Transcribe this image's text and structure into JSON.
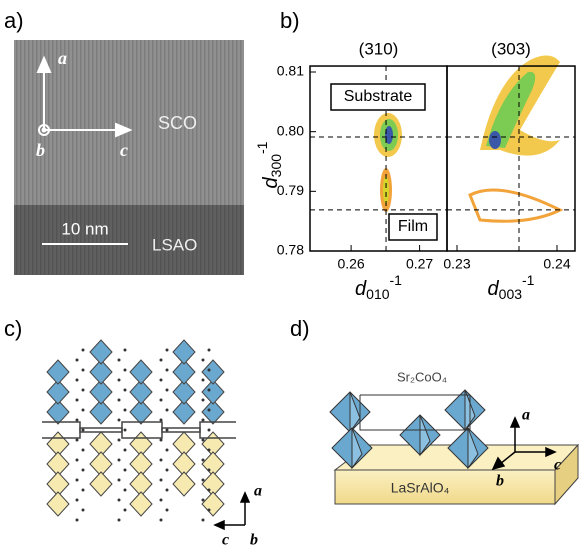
{
  "panel_a": {
    "label": "a)",
    "axis_a": "a",
    "axis_b": "b",
    "axis_c": "c",
    "top_layer": "SCO",
    "scale_bar": "10 nm",
    "bottom_layer": "LSAO"
  },
  "panel_b": {
    "label": "b)",
    "ylim": [
      0.78,
      0.811
    ],
    "yticks": [
      0.78,
      0.79,
      {
        "value": 0.8,
        "label": "0.80"
      },
      0.81
    ],
    "ylabel": {
      "main": "d",
      "sub": "300",
      "sup": "-1"
    },
    "h_dashed": [
      0.7991,
      0.7869
    ],
    "plots": [
      {
        "title": "(310)",
        "xlim": [
          0.254,
          0.274
        ],
        "xticks": [
          0.26,
          0.27
        ],
        "v_dashed": 0.2651,
        "xlabel": {
          "main": "d",
          "sub": "010",
          "sup": "-1"
        },
        "annotations": [
          "Substrate",
          "Film"
        ]
      },
      {
        "title": "(303)",
        "xlim": [
          0.229,
          0.2418
        ],
        "xticks": [
          0.23,
          0.24
        ],
        "v_dashed": 0.2362,
        "xlabel": {
          "main": "d",
          "sub": "003",
          "sup": "-1"
        }
      }
    ]
  },
  "panel_c": {
    "label": "c)",
    "axis_a": "a",
    "axis_c": "c",
    "axis_b": "b"
  },
  "panel_d": {
    "label": "d)",
    "film": "Sr₂CoO₄",
    "substrate": "LaSrAlO₄",
    "axis_a": "a",
    "axis_b": "b",
    "axis_c": "c"
  }
}
